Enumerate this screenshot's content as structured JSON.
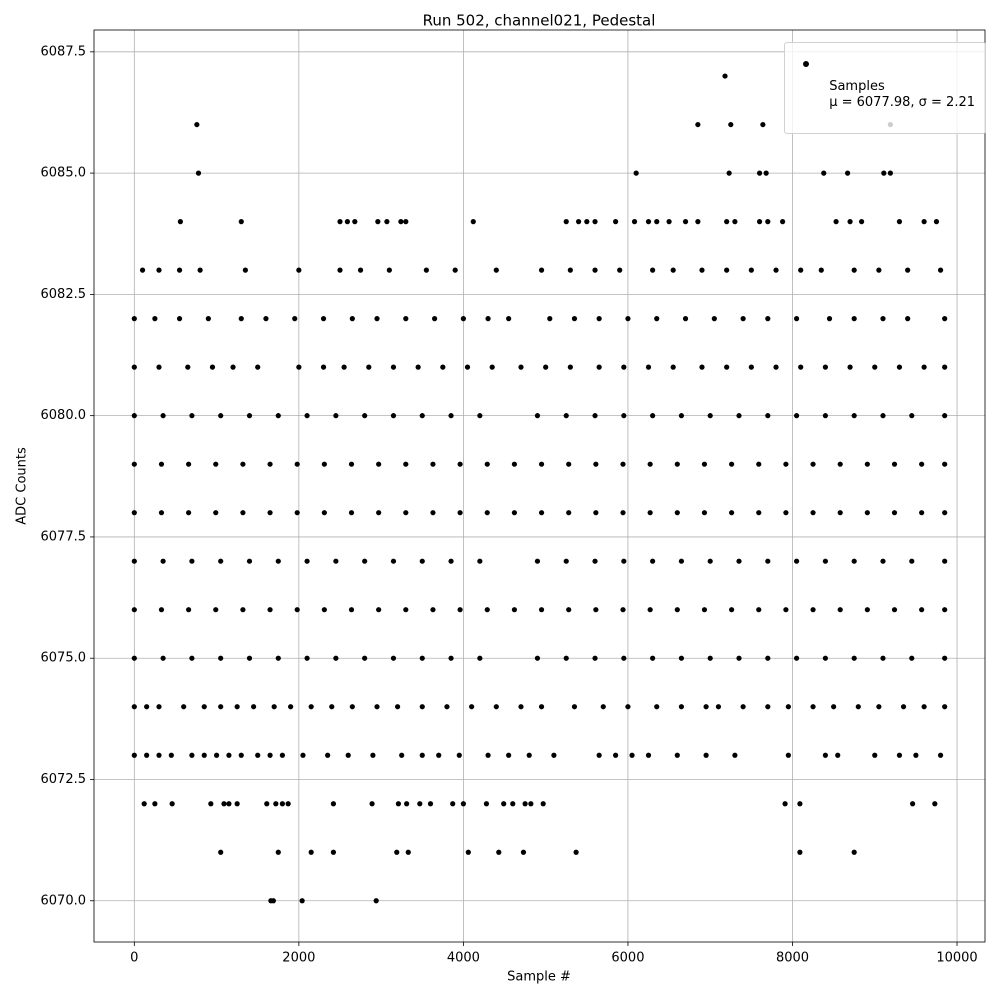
{
  "chart_data": {
    "type": "scatter",
    "title": "Run 502, channel021, Pedestal",
    "x_label": "Sample #",
    "y_label": "ADC Counts",
    "xlim": [
      -490,
      10340
    ],
    "ylim": [
      6069.15,
      6087.95
    ],
    "xticks": [
      0,
      2000,
      4000,
      6000,
      8000,
      10000
    ],
    "yticks": [
      {
        "value": 6070,
        "label": "6070.0"
      },
      {
        "value": 6072.5,
        "label": "6072.5"
      },
      {
        "value": 6075,
        "label": "6075.0"
      },
      {
        "value": 6077.5,
        "label": "6077.5"
      },
      {
        "value": 6080,
        "label": "6080.0"
      },
      {
        "value": 6082.5,
        "label": "6082.5"
      },
      {
        "value": 6085,
        "label": "6085.0"
      },
      {
        "value": 6087.5,
        "label": "6087.5"
      }
    ],
    "grid": true,
    "legend": "upper right",
    "series": [
      {
        "name": "Samples\nμ = 6077.98, σ = 2.21",
        "color": "#000000",
        "x": [
          7180,
          760,
          6850,
          7250,
          7640,
          9190,
          780,
          6100,
          7230,
          7600,
          7680,
          8380,
          8670,
          9110,
          9190,
          560,
          1300,
          2500,
          2590,
          2680,
          2960,
          3070,
          3240,
          3300,
          4120,
          5250,
          5400,
          5500,
          5600,
          5850,
          6080,
          6250,
          6350,
          6500,
          6700,
          6850,
          7200,
          7300,
          7600,
          7700,
          7880,
          8530,
          8700,
          8840,
          9300,
          9600,
          9750,
          100,
          300,
          550,
          800,
          1350,
          2000,
          2500,
          2750,
          3100,
          3550,
          3900,
          4400,
          4950,
          5300,
          5600,
          5900,
          6300,
          6550,
          6900,
          7200,
          7500,
          7800,
          8100,
          8350,
          8750,
          9050,
          9400,
          9800,
          0,
          250,
          550,
          900,
          1300,
          1600,
          1950,
          2300,
          2650,
          2950,
          3300,
          3650,
          4000,
          4300,
          4550,
          5050,
          5350,
          5650,
          6000,
          6350,
          6700,
          7050,
          7400,
          7700,
          8050,
          8450,
          8750,
          9100,
          9400,
          9850,
          0,
          300,
          650,
          950,
          1200,
          1500,
          2000,
          2300,
          2550,
          2850,
          3150,
          3450,
          3750,
          4050,
          4350,
          4700,
          5000,
          5300,
          5650,
          5950,
          6250,
          6550,
          6900,
          7200,
          7500,
          7800,
          8100,
          8400,
          8700,
          9000,
          9300,
          9600,
          9850,
          0,
          350,
          700,
          1050,
          1400,
          1750,
          2100,
          2450,
          2800,
          3150,
          3500,
          3850,
          4200,
          4900,
          5250,
          5600,
          5950,
          6300,
          6650,
          7000,
          7350,
          7700,
          8050,
          8400,
          8750,
          9100,
          9450,
          9850,
          0,
          330,
          660,
          990,
          1320,
          1650,
          1980,
          2310,
          2640,
          2970,
          3300,
          3630,
          3960,
          4290,
          4620,
          4950,
          5280,
          5610,
          5940,
          6270,
          6600,
          6930,
          7260,
          7590,
          7920,
          8250,
          8580,
          8910,
          9240,
          9570,
          9850,
          0,
          330,
          660,
          990,
          1320,
          1650,
          1980,
          2310,
          2640,
          2970,
          3300,
          3630,
          3960,
          4290,
          4620,
          4950,
          5280,
          5610,
          5940,
          6270,
          6600,
          6930,
          7260,
          7590,
          7920,
          8250,
          8580,
          8910,
          9240,
          9570,
          9850,
          0,
          350,
          700,
          1050,
          1400,
          1750,
          2100,
          2450,
          2800,
          3150,
          3500,
          3850,
          4200,
          4900,
          5250,
          5600,
          5950,
          6300,
          6650,
          7000,
          7350,
          7700,
          8050,
          8400,
          8750,
          9100,
          9450,
          9850,
          0,
          330,
          660,
          990,
          1320,
          1650,
          1980,
          2310,
          2640,
          2970,
          3300,
          3630,
          3960,
          4290,
          4620,
          4950,
          5280,
          5610,
          5940,
          6270,
          6600,
          6930,
          7260,
          7590,
          7920,
          8250,
          8580,
          8910,
          9240,
          9570,
          9850,
          0,
          350,
          700,
          1050,
          1400,
          1750,
          2100,
          2450,
          2800,
          3150,
          3500,
          3850,
          4200,
          4900,
          5250,
          5600,
          5950,
          6300,
          6650,
          7000,
          7350,
          7700,
          8050,
          8400,
          8750,
          9100,
          9450,
          9850,
          0,
          150,
          300,
          600,
          850,
          1050,
          1250,
          1450,
          1700,
          1900,
          2150,
          2400,
          2650,
          2950,
          3200,
          3500,
          3800,
          4100,
          4400,
          4700,
          4950,
          5350,
          5700,
          6000,
          6350,
          6650,
          6950,
          7100,
          7400,
          7700,
          7950,
          8250,
          8500,
          8800,
          9050,
          9350,
          9600,
          9850,
          0,
          150,
          300,
          450,
          700,
          850,
          1000,
          1150,
          1300,
          1500,
          1650,
          1800,
          2050,
          2350,
          2600,
          2900,
          3250,
          3500,
          3700,
          3950,
          4300,
          4550,
          4800,
          5100,
          5650,
          5850,
          6050,
          6250,
          6600,
          6950,
          7300,
          7950,
          8400,
          8550,
          9000,
          9300,
          9500,
          9800,
          120,
          250,
          460,
          930,
          1090,
          1150,
          1250,
          1610,
          1720,
          1800,
          1870,
          2420,
          2890,
          3210,
          3310,
          3470,
          3600,
          3870,
          4000,
          4280,
          4490,
          4600,
          4750,
          4820,
          4970,
          7910,
          8090,
          9460,
          9730,
          1050,
          1750,
          2150,
          2420,
          3190,
          3330,
          4060,
          4430,
          4730,
          5370,
          8090,
          8750,
          1660,
          1690,
          2040,
          2940
        ],
        "values": [
          6087,
          6086,
          6086,
          6086,
          6086,
          6086,
          6085,
          6085,
          6085,
          6085,
          6085,
          6085,
          6085,
          6085,
          6085,
          6084,
          6084,
          6084,
          6084,
          6084,
          6084,
          6084,
          6084,
          6084,
          6084,
          6084,
          6084,
          6084,
          6084,
          6084,
          6084,
          6084,
          6084,
          6084,
          6084,
          6084,
          6084,
          6084,
          6084,
          6084,
          6084,
          6084,
          6084,
          6084,
          6084,
          6084,
          6084,
          6083,
          6083,
          6083,
          6083,
          6083,
          6083,
          6083,
          6083,
          6083,
          6083,
          6083,
          6083,
          6083,
          6083,
          6083,
          6083,
          6083,
          6083,
          6083,
          6083,
          6083,
          6083,
          6083,
          6083,
          6083,
          6083,
          6083,
          6083,
          6082,
          6082,
          6082,
          6082,
          6082,
          6082,
          6082,
          6082,
          6082,
          6082,
          6082,
          6082,
          6082,
          6082,
          6082,
          6082,
          6082,
          6082,
          6082,
          6082,
          6082,
          6082,
          6082,
          6082,
          6082,
          6082,
          6082,
          6082,
          6082,
          6082,
          6081,
          6081,
          6081,
          6081,
          6081,
          6081,
          6081,
          6081,
          6081,
          6081,
          6081,
          6081,
          6081,
          6081,
          6081,
          6081,
          6081,
          6081,
          6081,
          6081,
          6081,
          6081,
          6081,
          6081,
          6081,
          6081,
          6081,
          6081,
          6081,
          6081,
          6081,
          6081,
          6081,
          6080,
          6080,
          6080,
          6080,
          6080,
          6080,
          6080,
          6080,
          6080,
          6080,
          6080,
          6080,
          6080,
          6080,
          6080,
          6080,
          6080,
          6080,
          6080,
          6080,
          6080,
          6080,
          6080,
          6080,
          6080,
          6080,
          6080,
          6080,
          6079,
          6079,
          6079,
          6079,
          6079,
          6079,
          6079,
          6079,
          6079,
          6079,
          6079,
          6079,
          6079,
          6079,
          6079,
          6079,
          6079,
          6079,
          6079,
          6079,
          6079,
          6079,
          6079,
          6079,
          6079,
          6079,
          6079,
          6079,
          6079,
          6079,
          6079,
          6078,
          6078,
          6078,
          6078,
          6078,
          6078,
          6078,
          6078,
          6078,
          6078,
          6078,
          6078,
          6078,
          6078,
          6078,
          6078,
          6078,
          6078,
          6078,
          6078,
          6078,
          6078,
          6078,
          6078,
          6078,
          6078,
          6078,
          6078,
          6078,
          6078,
          6078,
          6077,
          6077,
          6077,
          6077,
          6077,
          6077,
          6077,
          6077,
          6077,
          6077,
          6077,
          6077,
          6077,
          6077,
          6077,
          6077,
          6077,
          6077,
          6077,
          6077,
          6077,
          6077,
          6077,
          6077,
          6077,
          6077,
          6077,
          6077,
          6076,
          6076,
          6076,
          6076,
          6076,
          6076,
          6076,
          6076,
          6076,
          6076,
          6076,
          6076,
          6076,
          6076,
          6076,
          6076,
          6076,
          6076,
          6076,
          6076,
          6076,
          6076,
          6076,
          6076,
          6076,
          6076,
          6076,
          6076,
          6076,
          6076,
          6076,
          6075,
          6075,
          6075,
          6075,
          6075,
          6075,
          6075,
          6075,
          6075,
          6075,
          6075,
          6075,
          6075,
          6075,
          6075,
          6075,
          6075,
          6075,
          6075,
          6075,
          6075,
          6075,
          6075,
          6075,
          6075,
          6075,
          6075,
          6075,
          6074,
          6074,
          6074,
          6074,
          6074,
          6074,
          6074,
          6074,
          6074,
          6074,
          6074,
          6074,
          6074,
          6074,
          6074,
          6074,
          6074,
          6074,
          6074,
          6074,
          6074,
          6074,
          6074,
          6074,
          6074,
          6074,
          6074,
          6074,
          6074,
          6074,
          6074,
          6074,
          6074,
          6074,
          6074,
          6074,
          6074,
          6074,
          6073,
          6073,
          6073,
          6073,
          6073,
          6073,
          6073,
          6073,
          6073,
          6073,
          6073,
          6073,
          6073,
          6073,
          6073,
          6073,
          6073,
          6073,
          6073,
          6073,
          6073,
          6073,
          6073,
          6073,
          6073,
          6073,
          6073,
          6073,
          6073,
          6073,
          6073,
          6073,
          6073,
          6073,
          6073,
          6073,
          6073,
          6073,
          6072,
          6072,
          6072,
          6072,
          6072,
          6072,
          6072,
          6072,
          6072,
          6072,
          6072,
          6072,
          6072,
          6072,
          6072,
          6072,
          6072,
          6072,
          6072,
          6072,
          6072,
          6072,
          6072,
          6072,
          6072,
          6072,
          6072,
          6072,
          6072,
          6071,
          6071,
          6071,
          6071,
          6071,
          6071,
          6071,
          6071,
          6071,
          6071,
          6071,
          6071,
          6070,
          6070,
          6070,
          6070
        ]
      }
    ]
  }
}
